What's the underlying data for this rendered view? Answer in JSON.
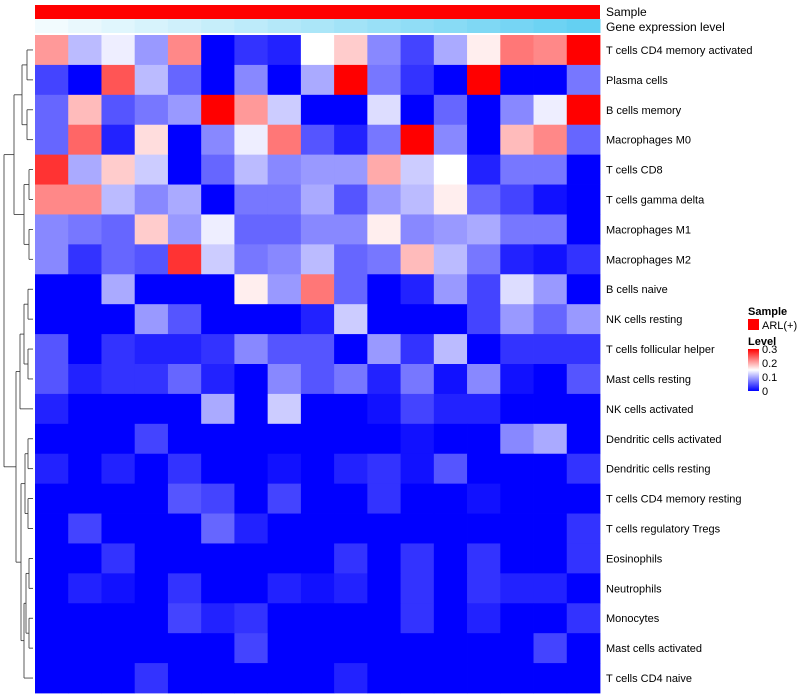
{
  "chart_data": {
    "type": "heatmap",
    "title": "",
    "annotation_tracks": [
      {
        "label": "Sample",
        "kind": "categorical",
        "color": "#ff0000",
        "value_label": "ARL(+)"
      },
      {
        "label": "Gene expression level",
        "kind": "gradient",
        "color_start": "#f2fbfe",
        "color_end": "#64d0f2"
      }
    ],
    "n_columns": 17,
    "rows": [
      "T cells CD4 memory activated",
      "Plasma cells",
      "B cells memory",
      "Macrophages M0",
      "T cells CD8",
      "T cells gamma delta",
      "Macrophages M1",
      "Macrophages M2",
      "B cells naive",
      "NK cells resting",
      "T cells follicular helper",
      "Mast cells resting",
      "NK cells activated",
      "Dendritic cells activated",
      "Dendritic cells resting",
      "T cells CD4 memory resting",
      "T cells regulatory  Tregs",
      "Eosinophils",
      "Neutrophils",
      "Monocytes",
      "Mast cells activated",
      "T cells CD4 naive"
    ],
    "values": [
      [
        0.21,
        0.11,
        0.14,
        0.09,
        0.22,
        0.0,
        0.03,
        0.02,
        0.15,
        0.18,
        0.08,
        0.04,
        0.1,
        0.16,
        0.23,
        0.22,
        0.3
      ],
      [
        0.04,
        0.0,
        0.25,
        0.11,
        0.06,
        0.0,
        0.08,
        0.0,
        0.1,
        0.3,
        0.07,
        0.03,
        0.0,
        0.3,
        0.0,
        0.0,
        0.07
      ],
      [
        0.06,
        0.19,
        0.05,
        0.07,
        0.09,
        0.3,
        0.21,
        0.12,
        0.0,
        0.0,
        0.13,
        0.0,
        0.06,
        0.0,
        0.08,
        0.14,
        0.3
      ],
      [
        0.06,
        0.24,
        0.02,
        0.17,
        0.0,
        0.08,
        0.14,
        0.23,
        0.05,
        0.02,
        0.07,
        0.3,
        0.08,
        0.0,
        0.19,
        0.22,
        0.06
      ],
      [
        0.27,
        0.1,
        0.18,
        0.12,
        0.0,
        0.06,
        0.11,
        0.08,
        0.09,
        0.09,
        0.2,
        0.12,
        0.15,
        0.02,
        0.07,
        0.07,
        0.0
      ],
      [
        0.22,
        0.22,
        0.11,
        0.08,
        0.1,
        0.0,
        0.07,
        0.07,
        0.1,
        0.05,
        0.09,
        0.11,
        0.16,
        0.06,
        0.04,
        0.01,
        0.0
      ],
      [
        0.08,
        0.07,
        0.06,
        0.18,
        0.09,
        0.14,
        0.06,
        0.06,
        0.08,
        0.08,
        0.16,
        0.08,
        0.09,
        0.1,
        0.07,
        0.07,
        0.0
      ],
      [
        0.08,
        0.03,
        0.06,
        0.05,
        0.27,
        0.12,
        0.07,
        0.08,
        0.11,
        0.06,
        0.07,
        0.19,
        0.11,
        0.07,
        0.02,
        0.01,
        0.03
      ],
      [
        0.0,
        0.0,
        0.1,
        0.0,
        0.0,
        0.0,
        0.16,
        0.09,
        0.23,
        0.06,
        0.0,
        0.02,
        0.09,
        0.04,
        0.13,
        0.09,
        0.0
      ],
      [
        0.0,
        0.0,
        0.0,
        0.09,
        0.05,
        0.0,
        0.0,
        0.0,
        0.02,
        0.12,
        0.0,
        0.0,
        0.0,
        0.04,
        0.09,
        0.06,
        0.09
      ],
      [
        0.05,
        0.0,
        0.03,
        0.02,
        0.02,
        0.03,
        0.08,
        0.05,
        0.05,
        0.0,
        0.09,
        0.03,
        0.11,
        0.0,
        0.03,
        0.03,
        0.03
      ],
      [
        0.05,
        0.02,
        0.03,
        0.03,
        0.06,
        0.02,
        0.0,
        0.08,
        0.05,
        0.07,
        0.02,
        0.07,
        0.01,
        0.08,
        0.01,
        0.0,
        0.05
      ],
      [
        0.02,
        0.0,
        0.0,
        0.0,
        0.0,
        0.1,
        0.0,
        0.12,
        0.0,
        0.0,
        0.01,
        0.04,
        0.02,
        0.02,
        0.0,
        0.0,
        0.0
      ],
      [
        0.0,
        0.0,
        0.0,
        0.04,
        0.0,
        0.0,
        0.0,
        0.0,
        0.0,
        0.0,
        0.0,
        0.01,
        0.0,
        0.0,
        0.08,
        0.1,
        0.0
      ],
      [
        0.02,
        0.0,
        0.02,
        0.0,
        0.03,
        0.0,
        0.0,
        0.01,
        0.0,
        0.02,
        0.03,
        0.01,
        0.05,
        0.0,
        0.0,
        0.0,
        0.03
      ],
      [
        0.0,
        0.0,
        0.0,
        0.0,
        0.05,
        0.04,
        0.0,
        0.04,
        0.0,
        0.0,
        0.03,
        0.0,
        0.0,
        0.01,
        0.0,
        0.0,
        0.0
      ],
      [
        0.0,
        0.04,
        0.0,
        0.0,
        0.0,
        0.06,
        0.02,
        0.0,
        0.0,
        0.0,
        0.0,
        0.0,
        0.0,
        0.0,
        0.0,
        0.0,
        0.03
      ],
      [
        0.0,
        0.0,
        0.03,
        0.0,
        0.0,
        0.0,
        0.0,
        0.0,
        0.0,
        0.03,
        0.0,
        0.03,
        0.0,
        0.03,
        0.0,
        0.0,
        0.03
      ],
      [
        0.0,
        0.02,
        0.01,
        0.0,
        0.03,
        0.0,
        0.0,
        0.02,
        0.01,
        0.02,
        0.0,
        0.03,
        0.0,
        0.03,
        0.02,
        0.02,
        0.0
      ],
      [
        0.0,
        0.0,
        0.0,
        0.0,
        0.04,
        0.02,
        0.03,
        0.0,
        0.0,
        0.0,
        0.0,
        0.03,
        0.0,
        0.02,
        0.0,
        0.0,
        0.03
      ],
      [
        0.0,
        0.0,
        0.0,
        0.0,
        0.0,
        0.0,
        0.04,
        0.0,
        0.0,
        0.0,
        0.0,
        0.0,
        0.0,
        0.0,
        0.0,
        0.04,
        0.0
      ],
      [
        0.0,
        0.0,
        0.0,
        0.03,
        0.0,
        0.0,
        0.0,
        0.0,
        0.0,
        0.02,
        0.0,
        0.0,
        0.0,
        0.0,
        0.0,
        0.0,
        0.0
      ]
    ],
    "color_scale": {
      "min": 0,
      "max": 0.3,
      "low": "#0000ff",
      "mid": "#ffffff",
      "high": "#ff0000",
      "midpoint": 0.15
    },
    "legend": {
      "position": "right",
      "sample_title": "Sample",
      "sample_entry": "ARL(+)",
      "level_title": "Level",
      "level_ticks": [
        "0.3",
        "0.2",
        "0.1",
        "0"
      ]
    },
    "row_dendrogram": true
  }
}
